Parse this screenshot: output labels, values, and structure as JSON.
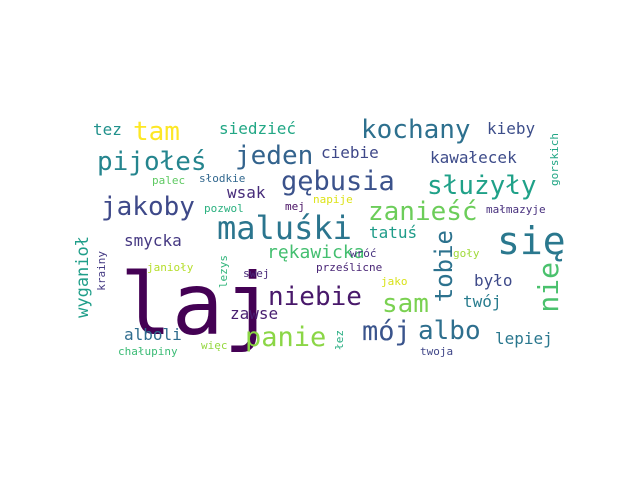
{
  "words": [
    {
      "text": "laj",
      "color": "#440154",
      "vertical": false
    },
    {
      "text": "się",
      "color": "#2a788e",
      "vertical": false
    },
    {
      "text": "maluśki",
      "color": "#2b758e",
      "vertical": false
    },
    {
      "text": "kochany",
      "color": "#2d708e",
      "vertical": false
    },
    {
      "text": "niebie",
      "color": "#48186a",
      "vertical": false
    },
    {
      "text": "gębusia",
      "color": "#3b528b",
      "vertical": false
    },
    {
      "text": "jakoby",
      "color": "#3e4989",
      "vertical": false
    },
    {
      "text": "zanieść",
      "color": "#6ccd5a",
      "vertical": false
    },
    {
      "text": "pijołeś",
      "color": "#25858e",
      "vertical": false
    },
    {
      "text": "jeden",
      "color": "#33638d",
      "vertical": false
    },
    {
      "text": "służyły",
      "color": "#1fa188",
      "vertical": false
    },
    {
      "text": "panie",
      "color": "#8bd646",
      "vertical": false
    },
    {
      "text": "mój",
      "color": "#3a548c",
      "vertical": false
    },
    {
      "text": "albo",
      "color": "#2e6f8e",
      "vertical": false
    },
    {
      "text": "sam",
      "color": "#7ad151",
      "vertical": false
    },
    {
      "text": "tobie",
      "color": "#2c728e",
      "vertical": true
    },
    {
      "text": "nie",
      "color": "#4ac16d",
      "vertical": true
    },
    {
      "text": "tam",
      "color": "#fde725",
      "vertical": false
    },
    {
      "text": "rękawicka",
      "color": "#44bf70",
      "vertical": false
    },
    {
      "text": "wyganioł",
      "color": "#1f9e89",
      "vertical": true
    },
    {
      "text": "kawałecek",
      "color": "#3e4c8a",
      "vertical": false
    },
    {
      "text": "siedzieć",
      "color": "#22a785",
      "vertical": false
    },
    {
      "text": "tez",
      "color": "#21918c",
      "vertical": false
    },
    {
      "text": "kieby",
      "color": "#3d4e8a",
      "vertical": false
    },
    {
      "text": "ciebie",
      "color": "#3f4889",
      "vertical": false
    },
    {
      "text": "wsak",
      "color": "#472c7a",
      "vertical": false
    },
    {
      "text": "smycka",
      "color": "#453882",
      "vertical": false
    },
    {
      "text": "tatuś",
      "color": "#1e9c89",
      "vertical": false
    },
    {
      "text": "było",
      "color": "#3e4a89",
      "vertical": false
    },
    {
      "text": "twój",
      "color": "#287c8e",
      "vertical": false
    },
    {
      "text": "zawse",
      "color": "#481f70",
      "vertical": false
    },
    {
      "text": "alboli",
      "color": "#2f6c8e",
      "vertical": false
    },
    {
      "text": "lepiej",
      "color": "#2a778e",
      "vertical": false
    },
    {
      "text": "gorskich",
      "color": "#21a685",
      "vertical": true
    },
    {
      "text": "małmazyje",
      "color": "#472f7d",
      "vertical": false
    },
    {
      "text": "palec",
      "color": "#5ec962",
      "vertical": false
    },
    {
      "text": "słodkie",
      "color": "#31678e",
      "vertical": false
    },
    {
      "text": "pozwol",
      "color": "#2ab07f",
      "vertical": false
    },
    {
      "text": "mej",
      "color": "#471063",
      "vertical": false
    },
    {
      "text": "napije",
      "color": "#dde318",
      "vertical": false
    },
    {
      "text": "krainy",
      "color": "#443a83",
      "vertical": true
    },
    {
      "text": "janioły",
      "color": "#b5de2b",
      "vertical": false
    },
    {
      "text": "lezys",
      "color": "#31b57b",
      "vertical": true
    },
    {
      "text": "swej",
      "color": "#482878",
      "vertical": false
    },
    {
      "text": "wróć",
      "color": "#46327e",
      "vertical": false
    },
    {
      "text": "goły",
      "color": "#a0da39",
      "vertical": false
    },
    {
      "text": "prześlicne",
      "color": "#482475",
      "vertical": false
    },
    {
      "text": "jako",
      "color": "#d8e219",
      "vertical": false
    },
    {
      "text": "łez",
      "color": "#26ad81",
      "vertical": true
    },
    {
      "text": "chałupiny",
      "color": "#3bbb75",
      "vertical": false
    },
    {
      "text": "więc",
      "color": "#95d840",
      "vertical": false
    },
    {
      "text": "twoja",
      "color": "#404688",
      "vertical": false
    }
  ]
}
